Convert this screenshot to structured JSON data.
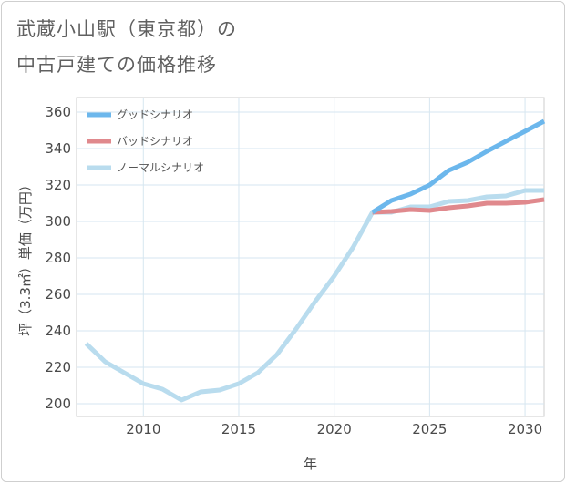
{
  "title_line1": "武蔵小山駅（東京都）の",
  "title_line2": "中古戸建ての価格推移",
  "chart_data": {
    "type": "line",
    "xlabel": "年",
    "ylabel": "坪（3.3㎡）単価（万円）",
    "xlim": [
      2006.5,
      2031
    ],
    "ylim": [
      193,
      368
    ],
    "x_ticks": [
      2010,
      2015,
      2020,
      2025,
      2030
    ],
    "y_ticks": [
      200,
      220,
      240,
      260,
      280,
      300,
      320,
      340,
      360
    ],
    "grid": true,
    "legend_position": "top-left",
    "series": [
      {
        "name": "グッドシナリオ",
        "color": "#6cb7ec",
        "x": [
          2022,
          2023,
          2024,
          2025,
          2026,
          2027,
          2028,
          2029,
          2030,
          2031
        ],
        "values": [
          305,
          311.5,
          315,
          320,
          328,
          332.5,
          338.5,
          344,
          349.5,
          355
        ]
      },
      {
        "name": "バッドシナリオ",
        "color": "#e0898d",
        "x": [
          2022,
          2023,
          2024,
          2025,
          2026,
          2027,
          2028,
          2029,
          2030,
          2031
        ],
        "values": [
          305,
          305.5,
          306.5,
          306,
          307.5,
          308.5,
          310,
          310,
          310.5,
          312
        ]
      },
      {
        "name": "ノーマルシナリオ",
        "color": "#b9dcee",
        "x": [
          2007,
          2008,
          2009,
          2010,
          2011,
          2012,
          2013,
          2014,
          2015,
          2016,
          2017,
          2018,
          2019,
          2020,
          2021,
          2022,
          2023,
          2024,
          2025,
          2026,
          2027,
          2028,
          2029,
          2030,
          2031
        ],
        "values": [
          233,
          223,
          217,
          211,
          208,
          202,
          206.5,
          207.5,
          211,
          217,
          227,
          241,
          256,
          270,
          286,
          305,
          305,
          308,
          308,
          311,
          311.5,
          313.5,
          314,
          317,
          317
        ]
      }
    ]
  }
}
